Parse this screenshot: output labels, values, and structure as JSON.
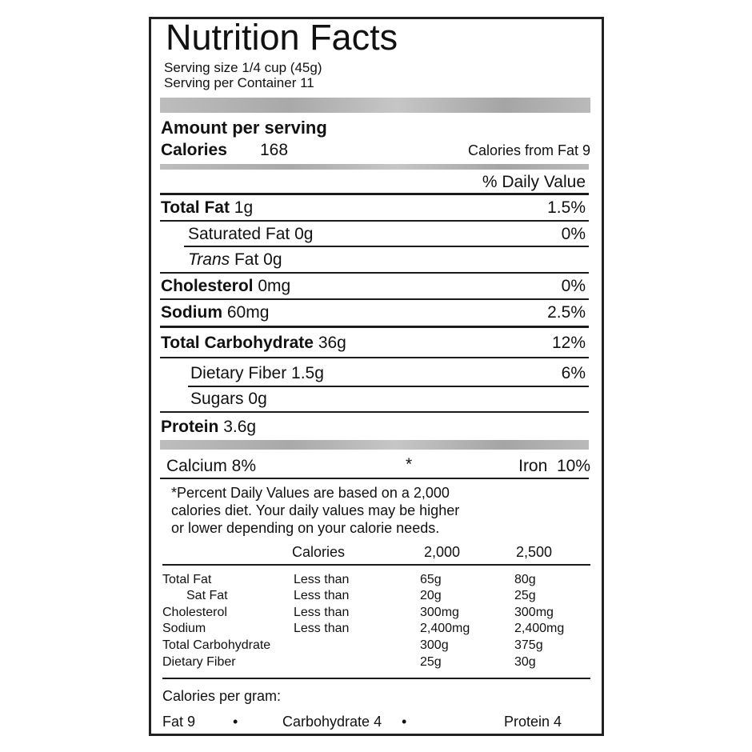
{
  "title": "Nutrition Facts",
  "serving_size": "Serving size 1/4 cup (45g)",
  "servings_per_container": "Serving per Container 11",
  "amount_per_serving": "Amount per serving",
  "calories": {
    "label": "Calories",
    "value": "168",
    "from_fat": "Calories from Fat 9"
  },
  "daily_value_header": "% Daily Value",
  "nutrients": [
    {
      "label": "Total Fat",
      "amount": "1g",
      "dv": "1.5%"
    },
    {
      "label": "Saturated Fat",
      "amount": "0g",
      "dv": "0%"
    },
    {
      "label": "Trans",
      "label2": "Fat",
      "amount": "0g",
      "dv": ""
    },
    {
      "label": "Cholesterol",
      "amount": "0mg",
      "dv": "0%"
    },
    {
      "label": "Sodium",
      "amount": "60mg",
      "dv": "2.5%"
    },
    {
      "label": "Total Carbohydrate",
      "amount": "36g",
      "dv": "12%"
    },
    {
      "label": "Dietary Fiber",
      "amount": "1.5g",
      "dv": "6%"
    },
    {
      "label": "Sugars",
      "amount": "0g",
      "dv": ""
    },
    {
      "label": "Protein",
      "amount": "3.6g",
      "dv": ""
    }
  ],
  "vitamins": {
    "calcium": "Calcium 8%",
    "separator": "*",
    "iron": "Iron  10%"
  },
  "footnote": [
    "*Percent Daily Values are based on a 2,000",
    "calories diet. Your daily values may be higher",
    "or lower depending on your calorie needs."
  ],
  "reference_table": {
    "headers": [
      "Calories",
      "2,000",
      "2,500"
    ],
    "rows": [
      [
        "Total Fat",
        "Less than",
        "65g",
        "80g"
      ],
      [
        "Sat Fat",
        "Less than",
        "20g",
        "25g"
      ],
      [
        "Cholesterol",
        "Less than",
        "300mg",
        "300mg"
      ],
      [
        "Sodium",
        "Less than",
        "2,400mg",
        "2,400mg"
      ],
      [
        "Total Carbohydrate",
        "",
        "300g",
        "375g"
      ],
      [
        "Dietary Fiber",
        "",
        "25g",
        "30g"
      ]
    ]
  },
  "calories_per_gram": {
    "label": "Calories per gram:",
    "fat": "Fat 9",
    "carbohydrate": "Carbohydrate 4",
    "protein": "Protein 4",
    "bullet": "•"
  }
}
